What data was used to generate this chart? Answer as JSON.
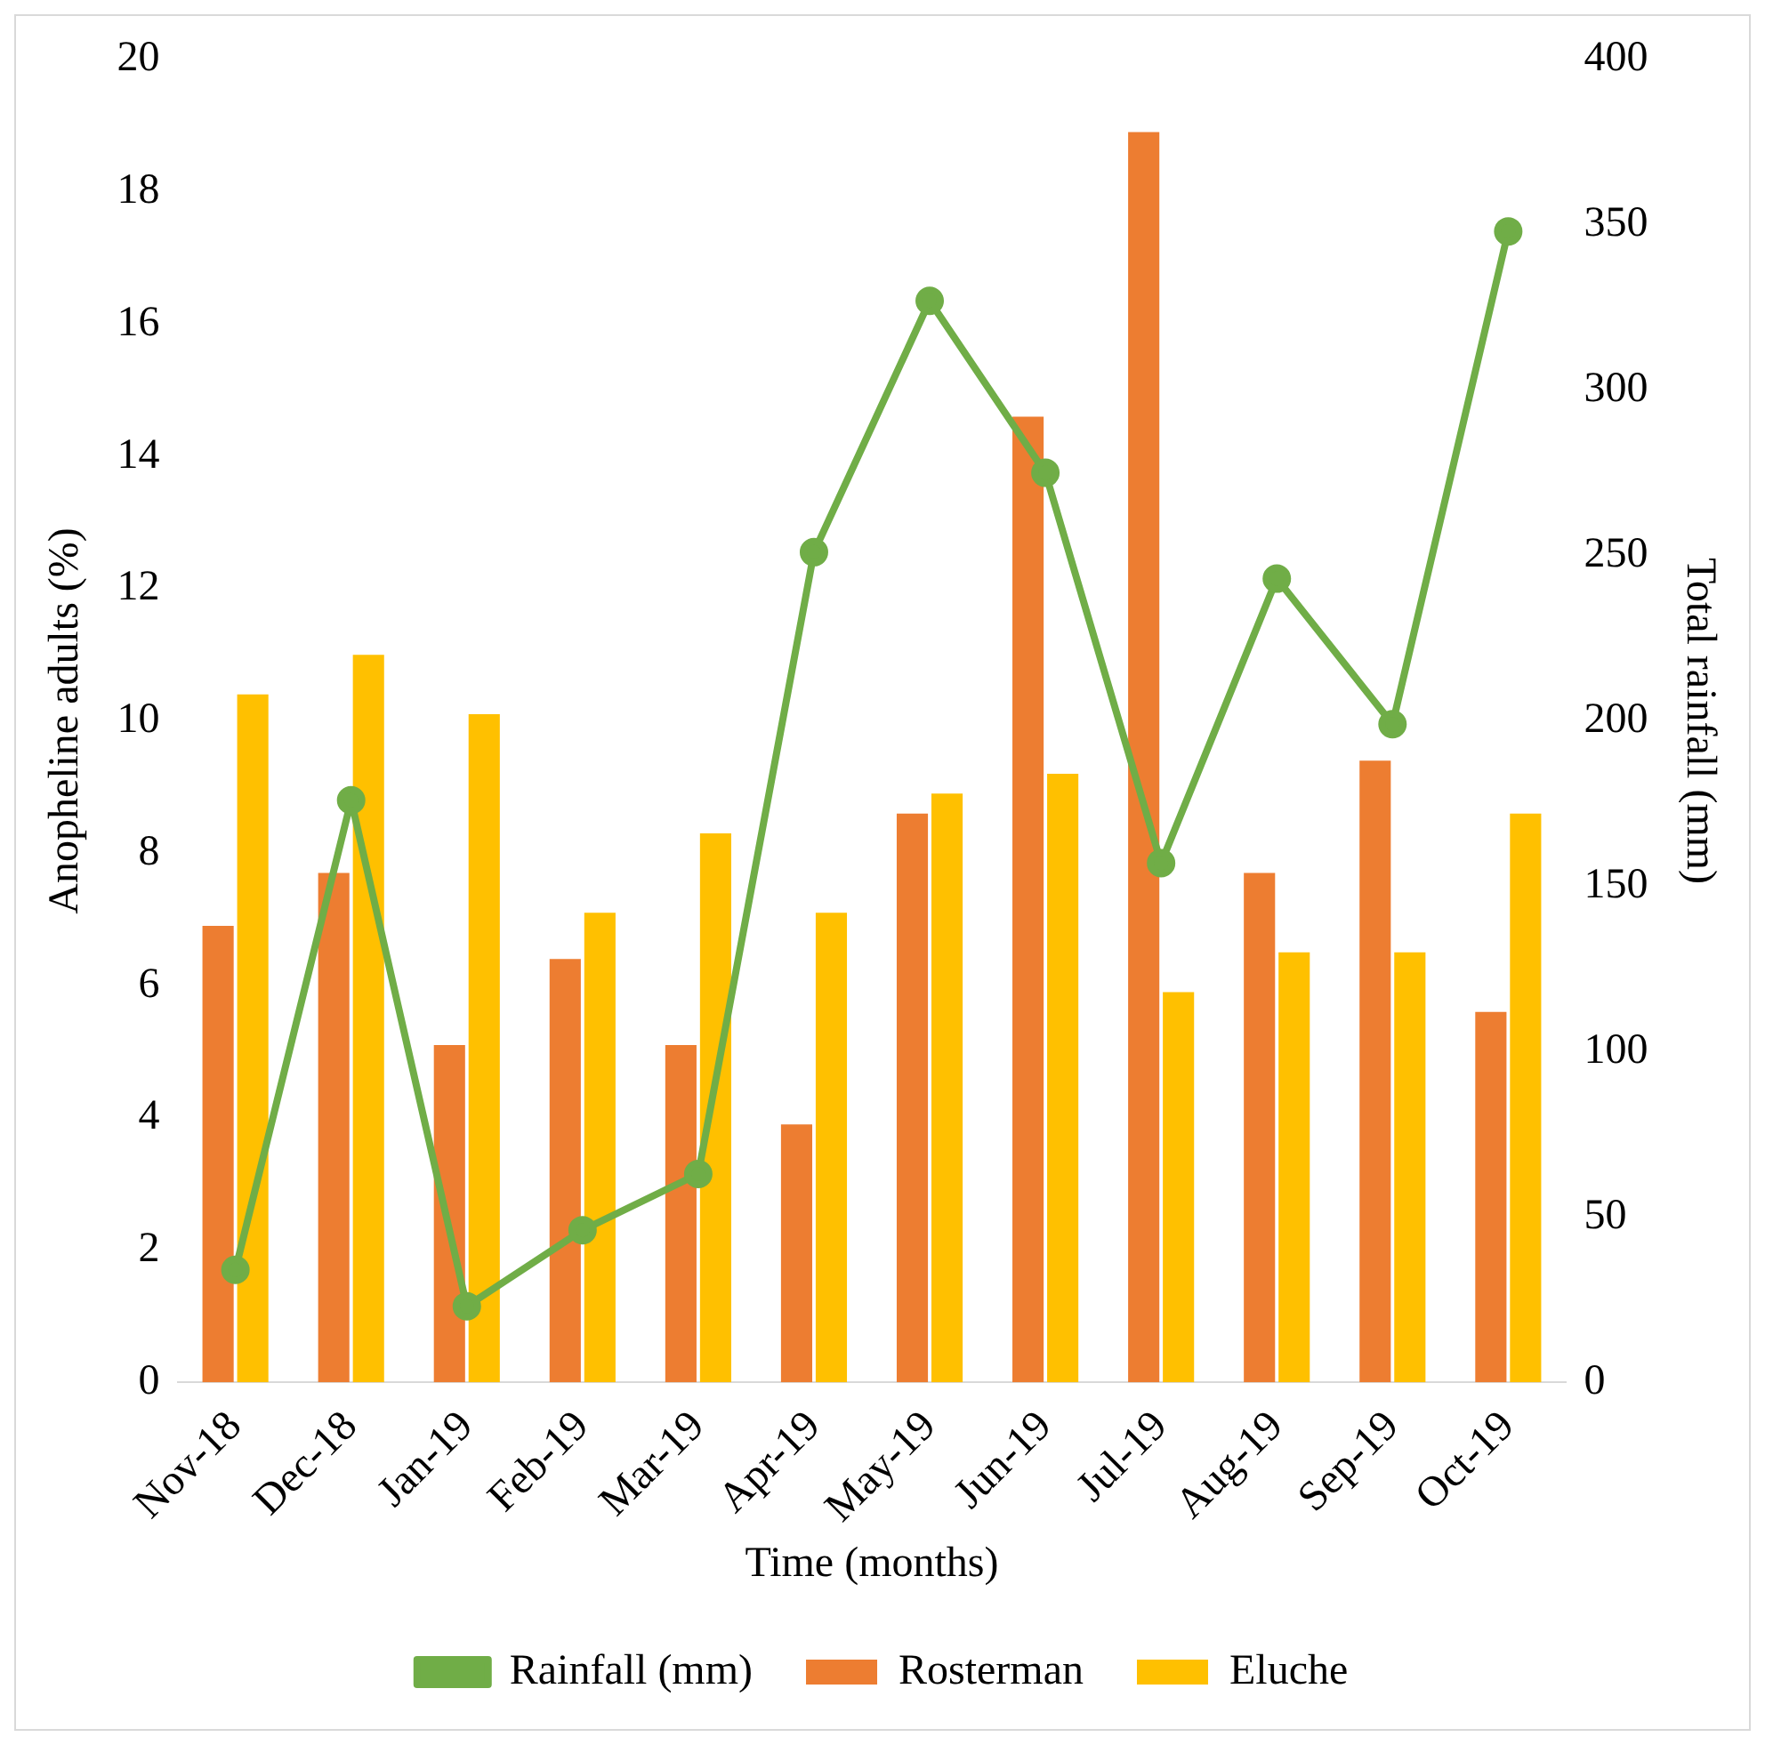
{
  "chart_data": {
    "type": "bar",
    "xlabel": "Time (months)",
    "ylabel": "Anopheline adults (%)",
    "y2label": "Total rainfall (mm)",
    "categories": [
      "Nov-18",
      "Dec-18",
      "Jan-19",
      "Feb-19",
      "Mar-19",
      "Apr-19",
      "May-19",
      "Jun-19",
      "Jul-19",
      "Aug-19",
      "Sep-19",
      "Oct-19"
    ],
    "series": [
      {
        "name": "Rosterman",
        "color": "#ed7d31",
        "values": [
          6.9,
          7.7,
          5.1,
          6.4,
          5.1,
          3.9,
          8.6,
          14.6,
          18.9,
          7.7,
          9.4,
          5.6
        ]
      },
      {
        "name": "Eluche",
        "color": "#ffc000",
        "values": [
          10.4,
          11.0,
          10.1,
          7.1,
          8.3,
          7.1,
          8.9,
          9.2,
          5.9,
          6.5,
          6.5,
          8.6
        ]
      },
      {
        "name": "Rainfall (mm)",
        "type": "line",
        "axis": "y2",
        "color": "#70ad47",
        "marker": "circle",
        "values": [
          34,
          176,
          23,
          46,
          63,
          251,
          327,
          275,
          157,
          243,
          199,
          348
        ]
      }
    ],
    "ylim": [
      0,
      20
    ],
    "yticks": [
      0,
      2,
      4,
      6,
      8,
      10,
      12,
      14,
      16,
      18,
      20
    ],
    "y2lim": [
      0,
      400
    ],
    "y2ticks": [
      0,
      50,
      100,
      150,
      200,
      250,
      300,
      350,
      400
    ],
    "grid": false,
    "legend": "bottom"
  }
}
